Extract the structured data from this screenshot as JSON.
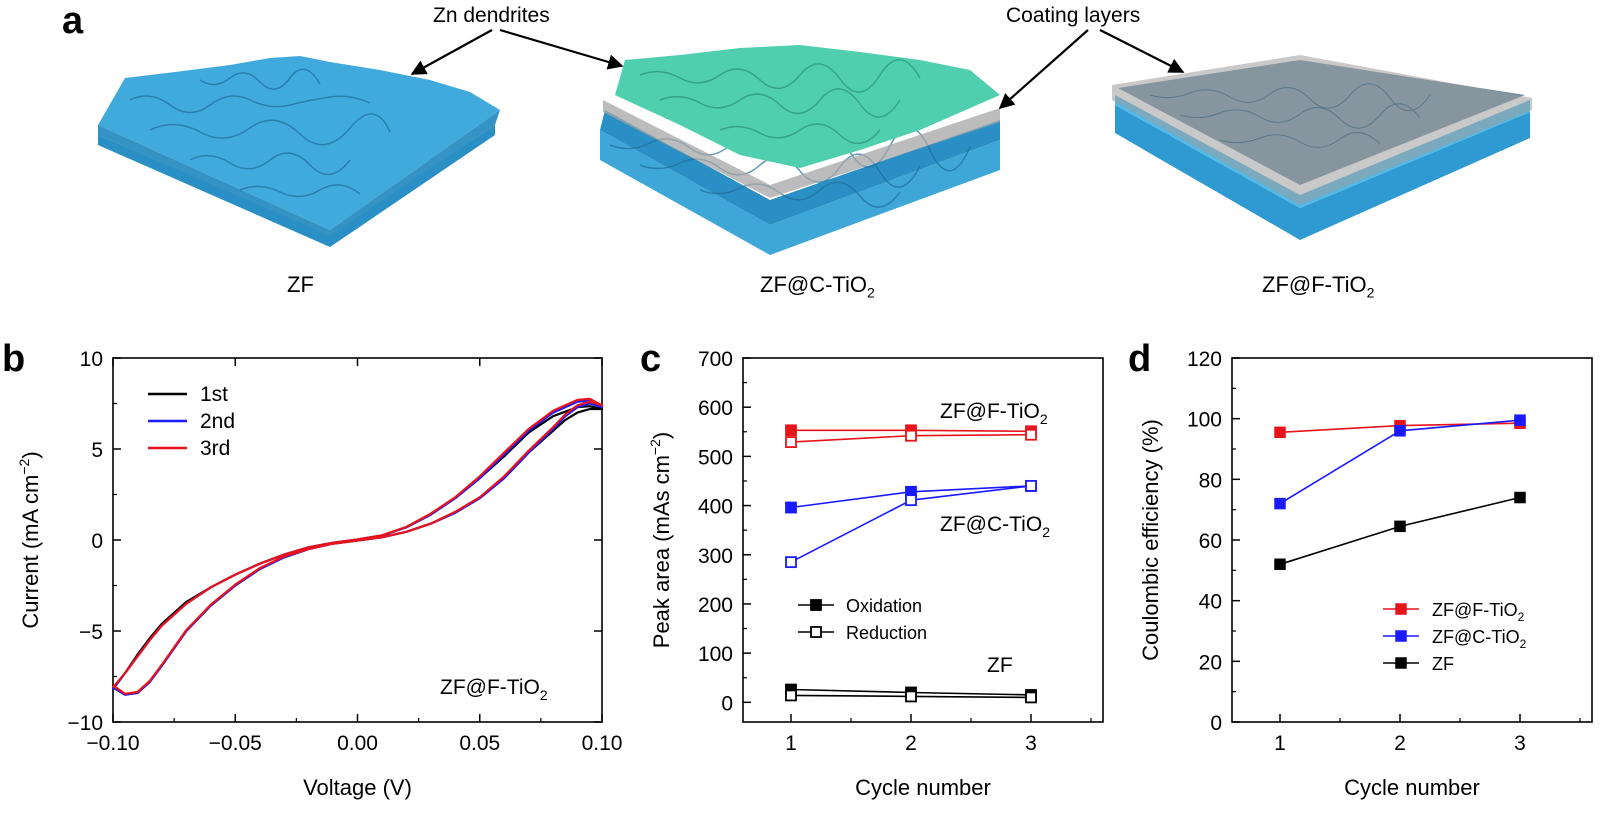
{
  "panel_a": {
    "letter": "a",
    "callouts": [
      "Zn dendrites",
      "Coating layers"
    ],
    "captions": [
      {
        "main": "ZF",
        "sub": ""
      },
      {
        "main": "ZF@C-TiO",
        "sub": "2"
      },
      {
        "main": "ZF@F-TiO",
        "sub": "2"
      }
    ],
    "colors": {
      "zinc": "#3ea7d8",
      "dendrite": "#4fcfae",
      "coating": "#9a9a9a"
    }
  },
  "chart_data": [
    {
      "panel": "b",
      "type": "line",
      "xlabel": "Voltage (V)",
      "ylabel": "Current (mA cm−2)",
      "xlim": [
        -0.1,
        0.1
      ],
      "ylim": [
        -10,
        10
      ],
      "xticks": [
        "−0.10",
        "−0.05",
        "0.00",
        "0.05",
        "0.10"
      ],
      "yticks": [
        "−10",
        "−5",
        "0",
        "5",
        "10"
      ],
      "annotation": {
        "main": "ZF@F-TiO",
        "sub": "2"
      },
      "legend_position": "top-left",
      "series": [
        {
          "name": "1st",
          "color": "#000000",
          "x": [
            -0.1,
            -0.095,
            -0.09,
            -0.085,
            -0.08,
            -0.07,
            -0.06,
            -0.05,
            -0.04,
            -0.03,
            -0.02,
            -0.01,
            0,
            0.01,
            0.02,
            0.03,
            0.04,
            0.05,
            0.06,
            0.07,
            0.08,
            0.085,
            0.09,
            0.095,
            0.1,
            0.095,
            0.09,
            0.08,
            0.07,
            0.06,
            0.05,
            0.04,
            0.03,
            0.02,
            0.01,
            0,
            -0.01,
            -0.02,
            -0.03,
            -0.04,
            -0.05,
            -0.06,
            -0.07,
            -0.08,
            -0.085,
            -0.09,
            -0.095,
            -0.1
          ],
          "y": [
            -8.1,
            -8.5,
            -8.4,
            -7.8,
            -6.9,
            -5.0,
            -3.6,
            -2.5,
            -1.6,
            -0.95,
            -0.5,
            -0.2,
            -0.03,
            0.15,
            0.45,
            0.9,
            1.5,
            2.3,
            3.4,
            4.8,
            6.0,
            6.6,
            7.0,
            7.2,
            7.2,
            7.35,
            7.3,
            6.8,
            5.9,
            4.6,
            3.4,
            2.3,
            1.4,
            0.7,
            0.25,
            0.03,
            -0.15,
            -0.4,
            -0.8,
            -1.3,
            -1.9,
            -2.6,
            -3.4,
            -4.6,
            -5.4,
            -6.3,
            -7.3,
            -8.2
          ]
        },
        {
          "name": "2nd",
          "color": "#1a1aff",
          "x": [
            -0.1,
            -0.095,
            -0.09,
            -0.085,
            -0.08,
            -0.07,
            -0.06,
            -0.05,
            -0.04,
            -0.03,
            -0.02,
            -0.01,
            0,
            0.01,
            0.02,
            0.03,
            0.04,
            0.05,
            0.06,
            0.07,
            0.08,
            0.085,
            0.09,
            0.095,
            0.1,
            0.095,
            0.09,
            0.08,
            0.07,
            0.06,
            0.05,
            0.04,
            0.03,
            0.02,
            0.01,
            0,
            -0.01,
            -0.02,
            -0.03,
            -0.04,
            -0.05,
            -0.06,
            -0.07,
            -0.08,
            -0.085,
            -0.09,
            -0.095,
            -0.1
          ],
          "y": [
            -8.1,
            -8.5,
            -8.4,
            -7.8,
            -6.9,
            -5.0,
            -3.6,
            -2.5,
            -1.6,
            -0.95,
            -0.5,
            -0.2,
            -0.03,
            0.15,
            0.45,
            0.9,
            1.5,
            2.3,
            3.4,
            4.8,
            6.1,
            6.8,
            7.3,
            7.5,
            7.3,
            7.65,
            7.6,
            7.0,
            6.0,
            4.7,
            3.4,
            2.3,
            1.4,
            0.7,
            0.25,
            0.03,
            -0.15,
            -0.4,
            -0.8,
            -1.3,
            -1.9,
            -2.6,
            -3.5,
            -4.7,
            -5.5,
            -6.4,
            -7.3,
            -8.2
          ]
        },
        {
          "name": "3rd",
          "color": "#e8141c",
          "x": [
            -0.1,
            -0.095,
            -0.09,
            -0.085,
            -0.08,
            -0.07,
            -0.06,
            -0.05,
            -0.04,
            -0.03,
            -0.02,
            -0.01,
            0,
            0.01,
            0.02,
            0.03,
            0.04,
            0.05,
            0.06,
            0.07,
            0.08,
            0.085,
            0.09,
            0.095,
            0.1,
            0.095,
            0.09,
            0.08,
            0.07,
            0.06,
            0.05,
            0.04,
            0.03,
            0.02,
            0.01,
            0,
            -0.01,
            -0.02,
            -0.03,
            -0.04,
            -0.05,
            -0.06,
            -0.07,
            -0.08,
            -0.085,
            -0.09,
            -0.095,
            -0.1
          ],
          "y": [
            -8.0,
            -8.45,
            -8.35,
            -7.75,
            -6.85,
            -4.95,
            -3.55,
            -2.45,
            -1.55,
            -0.9,
            -0.5,
            -0.2,
            -0.03,
            0.15,
            0.45,
            0.9,
            1.55,
            2.35,
            3.5,
            4.9,
            6.2,
            6.9,
            7.4,
            7.6,
            7.4,
            7.75,
            7.7,
            7.1,
            6.1,
            4.8,
            3.5,
            2.35,
            1.45,
            0.72,
            0.26,
            0.03,
            -0.15,
            -0.4,
            -0.8,
            -1.3,
            -1.9,
            -2.6,
            -3.5,
            -4.7,
            -5.5,
            -6.4,
            -7.3,
            -8.1
          ]
        }
      ]
    },
    {
      "panel": "c",
      "type": "line",
      "xlabel": "Cycle number",
      "ylabel": "Peak area (mAs cm−2)",
      "xlim": [
        0.6,
        3.6
      ],
      "ylim": [
        -40,
        700
      ],
      "xticks": [
        "1",
        "2",
        "3"
      ],
      "yticks": [
        "0",
        "100",
        "200",
        "300",
        "400",
        "500",
        "600",
        "700"
      ],
      "x": [
        1,
        2,
        3
      ],
      "series": [
        {
          "group": "ZF@F-TiO2",
          "kind": "Oxidation",
          "color": "#e8141c",
          "filled": true,
          "values": [
            553,
            553,
            551
          ]
        },
        {
          "group": "ZF@F-TiO2",
          "kind": "Reduction",
          "color": "#e8141c",
          "filled": false,
          "values": [
            529,
            542,
            544
          ]
        },
        {
          "group": "ZF@C-TiO2",
          "kind": "Oxidation",
          "color": "#1a1aff",
          "filled": true,
          "values": [
            396,
            428,
            440
          ]
        },
        {
          "group": "ZF@C-TiO2",
          "kind": "Reduction",
          "color": "#1a1aff",
          "filled": false,
          "values": [
            285,
            411,
            440
          ]
        },
        {
          "group": "ZF",
          "kind": "Oxidation",
          "color": "#000000",
          "filled": true,
          "values": [
            26,
            20,
            15
          ]
        },
        {
          "group": "ZF",
          "kind": "Reduction",
          "color": "#000000",
          "filled": false,
          "values": [
            14,
            12,
            10
          ]
        }
      ],
      "legend": [
        {
          "label": "Oxidation",
          "filled": true
        },
        {
          "label": "Reduction",
          "filled": false
        }
      ],
      "legend_position": "lower-left",
      "annotations": [
        {
          "main": "ZF@F-TiO",
          "sub": "2"
        },
        {
          "main": "ZF@C-TiO",
          "sub": "2"
        },
        {
          "main": "ZF",
          "sub": ""
        }
      ]
    },
    {
      "panel": "d",
      "type": "line",
      "xlabel": "Cycle number",
      "ylabel": "Coulombic efficiency (%)",
      "xlim": [
        0.6,
        3.6
      ],
      "ylim": [
        0,
        120
      ],
      "xticks": [
        "1",
        "2",
        "3"
      ],
      "yticks": [
        "0",
        "20",
        "40",
        "60",
        "80",
        "100",
        "120"
      ],
      "x": [
        1,
        2,
        3
      ],
      "series": [
        {
          "label_main": "ZF@F-TiO",
          "label_sub": "2",
          "color": "#e8141c",
          "values": [
            95.5,
            97.7,
            98.5
          ]
        },
        {
          "label_main": "ZF@C-TiO",
          "label_sub": "2",
          "color": "#1a1aff",
          "values": [
            72.0,
            96.0,
            99.5
          ]
        },
        {
          "label_main": "ZF",
          "label_sub": "",
          "color": "#000000",
          "values": [
            52.0,
            64.5,
            74.0
          ]
        }
      ],
      "legend_position": "lower-right"
    }
  ],
  "panel_letters": {
    "b": "b",
    "c": "c",
    "d": "d"
  }
}
